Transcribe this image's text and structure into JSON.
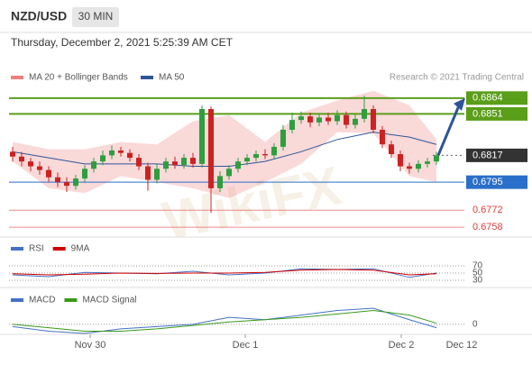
{
  "chart_data": {
    "type": "candlestick",
    "title": "NZD/USD",
    "timeframe": "30 MIN",
    "timestamp": "Thursday, December 2, 2021 5:25:39 AM CET",
    "credit": "Research © 2021 Trading Central",
    "watermark": "WikiFX",
    "last_time_label": "Dec 12",
    "ylim": [
      0.675,
      0.6889
    ],
    "open": [
      0.682,
      0.6816,
      0.6812,
      0.6808,
      0.6805,
      0.6799,
      0.6795,
      0.6792,
      0.6798,
      0.6806,
      0.6812,
      0.6817,
      0.6821,
      0.6819,
      0.6815,
      0.6808,
      0.6797,
      0.6806,
      0.6812,
      0.6809,
      0.6815,
      0.681,
      0.6855,
      0.679,
      0.68,
      0.6806,
      0.6812,
      0.6815,
      0.6818,
      0.6817,
      0.6824,
      0.6838,
      0.6846,
      0.6849,
      0.6844,
      0.6848,
      0.6845,
      0.685,
      0.6842,
      0.6847,
      0.6855,
      0.6838,
      0.6826,
      0.6818,
      0.6808,
      0.6806,
      0.681,
      0.6812
    ],
    "high": [
      0.6824,
      0.682,
      0.6815,
      0.6812,
      0.6808,
      0.6803,
      0.6799,
      0.6801,
      0.6809,
      0.6815,
      0.6821,
      0.6825,
      0.6824,
      0.6822,
      0.6818,
      0.6811,
      0.681,
      0.6815,
      0.6816,
      0.6818,
      0.6819,
      0.6858,
      0.6857,
      0.6804,
      0.6809,
      0.6815,
      0.6818,
      0.6821,
      0.6822,
      0.6827,
      0.6842,
      0.6852,
      0.6853,
      0.6852,
      0.6851,
      0.6852,
      0.6854,
      0.6853,
      0.6851,
      0.6866,
      0.6858,
      0.6841,
      0.6829,
      0.6821,
      0.6811,
      0.6813,
      0.6815,
      0.682
    ],
    "low": [
      0.6812,
      0.6808,
      0.6804,
      0.6801,
      0.6795,
      0.6791,
      0.6787,
      0.6789,
      0.6795,
      0.6803,
      0.6809,
      0.6814,
      0.6816,
      0.6812,
      0.6805,
      0.6788,
      0.6794,
      0.6803,
      0.6806,
      0.6806,
      0.6807,
      0.6807,
      0.677,
      0.6787,
      0.6797,
      0.6803,
      0.6809,
      0.6812,
      0.6814,
      0.6814,
      0.6821,
      0.6835,
      0.6843,
      0.684,
      0.6841,
      0.6842,
      0.6842,
      0.6839,
      0.6839,
      0.6844,
      0.6835,
      0.6823,
      0.6815,
      0.6804,
      0.6802,
      0.6803,
      0.6807,
      0.6809
    ],
    "close": [
      0.6816,
      0.6812,
      0.6808,
      0.6805,
      0.6799,
      0.6795,
      0.6792,
      0.6798,
      0.6806,
      0.6812,
      0.6817,
      0.6821,
      0.6819,
      0.6815,
      0.6808,
      0.6797,
      0.6806,
      0.6812,
      0.6809,
      0.6815,
      0.681,
      0.6855,
      0.679,
      0.68,
      0.6806,
      0.6812,
      0.6815,
      0.6818,
      0.6817,
      0.6824,
      0.6838,
      0.6846,
      0.6849,
      0.6844,
      0.6848,
      0.6845,
      0.685,
      0.6842,
      0.6847,
      0.6855,
      0.6838,
      0.6826,
      0.6818,
      0.6808,
      0.6806,
      0.681,
      0.6812,
      0.6817
    ],
    "xticks": [
      {
        "value": 8.6,
        "label": "Nov 30"
      },
      {
        "value": 25.8,
        "label": "Dec 1"
      },
      {
        "value": 43.1,
        "label": "Dec 2"
      }
    ],
    "bands": {
      "name": "MA 20 + Bollinger Bands",
      "color": "#f08080",
      "x": [
        0,
        4,
        8,
        12,
        16,
        20,
        24,
        28,
        32,
        36,
        40,
        44,
        47
      ],
      "upper": [
        0.6828,
        0.6822,
        0.6822,
        0.6828,
        0.6826,
        0.6845,
        0.685,
        0.6828,
        0.6852,
        0.6862,
        0.687,
        0.6858,
        0.683
      ],
      "lower": [
        0.6812,
        0.679,
        0.6786,
        0.68,
        0.6795,
        0.679,
        0.6782,
        0.6795,
        0.681,
        0.6836,
        0.6835,
        0.68,
        0.6795
      ]
    },
    "ma50": {
      "name": "MA 50",
      "color": "#2f5597",
      "x": [
        0,
        4,
        8,
        12,
        16,
        20,
        24,
        28,
        32,
        36,
        40,
        44,
        47
      ],
      "values": [
        0.682,
        0.6815,
        0.681,
        0.681,
        0.681,
        0.6808,
        0.6808,
        0.6812,
        0.682,
        0.683,
        0.6836,
        0.6832,
        0.6826
      ]
    },
    "levels": [
      {
        "value": 0.6864,
        "color": "#5a9e1a",
        "box": true
      },
      {
        "value": 0.6851,
        "color": "#5a9e1a",
        "box": true
      },
      {
        "value": 0.6817,
        "color": "#333333",
        "box": true
      },
      {
        "value": 0.6795,
        "color": "#2a6fc9",
        "box": true
      },
      {
        "value": 0.6772,
        "color": "#e04040",
        "box": false
      },
      {
        "value": 0.6758,
        "color": "#e04040",
        "box": false
      }
    ],
    "rsi": {
      "ylim": [
        0,
        100
      ],
      "yticks": [
        70,
        50,
        30
      ],
      "x": [
        0,
        4,
        8,
        12,
        16,
        20,
        24,
        28,
        32,
        36,
        40,
        44,
        47
      ],
      "series": [
        {
          "name": "RSI",
          "color": "#4472c4",
          "values": [
            45,
            40,
            52,
            50,
            48,
            55,
            45,
            50,
            62,
            60,
            62,
            38,
            50
          ]
        },
        {
          "name": "9MA",
          "color": "#d00000",
          "values": [
            48,
            45,
            47,
            50,
            49,
            50,
            50,
            52,
            58,
            60,
            58,
            45,
            48
          ]
        }
      ]
    },
    "macd": {
      "ylim": [
        -0.0008,
        0.0025
      ],
      "yticks": [
        0
      ],
      "x": [
        0,
        4,
        8,
        12,
        16,
        20,
        24,
        28,
        32,
        36,
        40,
        44,
        47
      ],
      "series": [
        {
          "name": "MACD",
          "color": "#4472c4",
          "values": [
            -0.0002,
            -0.0006,
            -0.0008,
            -0.0004,
            -0.0002,
            0.0,
            0.0006,
            0.0004,
            0.0008,
            0.0012,
            0.0014,
            0.0004,
            -0.0003
          ]
        },
        {
          "name": "MACD Signal",
          "color": "#3a9a1a",
          "values": [
            0.0,
            -0.0003,
            -0.0006,
            -0.0006,
            -0.0004,
            -0.0001,
            0.0002,
            0.0004,
            0.0006,
            0.0009,
            0.0012,
            0.0008,
            0.0001
          ]
        }
      ]
    }
  }
}
